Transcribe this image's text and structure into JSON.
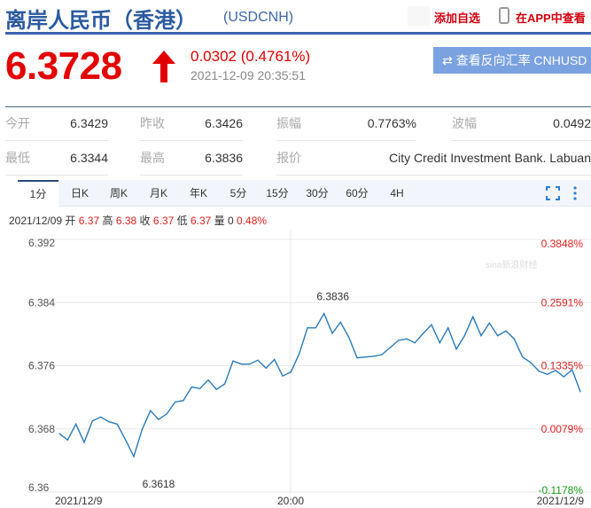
{
  "header": {
    "title": "离岸人民币（香港）",
    "code": "(USDCNH)",
    "add_watchlist": "添加自选",
    "view_in_app": "在APP中查看"
  },
  "quote": {
    "price": "6.3728",
    "direction": "up",
    "change": "0.0302 (0.4761%)",
    "timestamp": "2021-12-09 20:35:51",
    "reverse_button": "查看反向汇率 CNHUSD"
  },
  "stats": [
    {
      "label": "今开",
      "value": "6.3429"
    },
    {
      "label": "昨收",
      "value": "6.3426"
    },
    {
      "label": "振幅",
      "value": "0.7763%"
    },
    {
      "label": "波幅",
      "value": "0.0492"
    },
    {
      "label": "最低",
      "value": "6.3344"
    },
    {
      "label": "最高",
      "value": "6.3836"
    },
    {
      "label": "报价",
      "value": "City Credit Investment Bank. Labuan"
    }
  ],
  "tabs": [
    "1分",
    "日K",
    "周K",
    "月K",
    "年K",
    "5分",
    "15分",
    "30分",
    "60分",
    "4H"
  ],
  "active_tab": "1分",
  "ohlc": {
    "date": "2021/12/09",
    "open_label": "开",
    "open": "6.37",
    "high_label": "高",
    "high": "6.38",
    "close_label": "收",
    "close": "6.37",
    "low_label": "低",
    "low": "6.37",
    "vol_label": "量",
    "vol": "0",
    "pct": "0.48%"
  },
  "colors": {
    "accent": "#3b63ad",
    "up": "#e30000",
    "down": "#1a9a1a",
    "line": "#2a7ab8"
  },
  "chart_data": {
    "type": "line",
    "ylim": [
      6.36,
      6.392
    ],
    "y_ticks": [
      "6.392",
      "6.384",
      "6.376",
      "6.368",
      "6.36"
    ],
    "y_right_ticks": [
      "0.3848%",
      "0.2591%",
      "0.1335%",
      "0.0079%",
      "-0.1178%"
    ],
    "x_ticks": [
      "2021/12/9",
      "20:00",
      "2021/12/9"
    ],
    "high_label": "6.3836",
    "low_label": "6.3618",
    "watermark": "sina新浪财经",
    "values": [
      6.3674,
      6.3666,
      6.3686,
      6.3663,
      6.369,
      6.3695,
      6.3689,
      6.3686,
      6.3666,
      6.3645,
      6.3679,
      6.3703,
      6.3692,
      6.3699,
      6.3714,
      6.3716,
      6.3733,
      6.3731,
      6.3742,
      6.373,
      6.3737,
      6.3766,
      6.3762,
      6.3762,
      6.3767,
      6.3757,
      6.3768,
      6.3747,
      6.3752,
      6.3775,
      6.3808,
      6.3808,
      6.3826,
      6.3801,
      6.3815,
      6.3796,
      6.377,
      6.3771,
      6.3772,
      6.3774,
      6.3783,
      6.3792,
      6.3794,
      6.3789,
      6.3801,
      6.3812,
      6.3789,
      6.3808,
      6.3781,
      6.3798,
      6.3822,
      6.3798,
      6.3814,
      6.3798,
      6.3804,
      6.3794,
      6.3771,
      6.3764,
      6.3753,
      6.3749,
      6.3754,
      6.3746,
      6.3755,
      6.3727
    ]
  }
}
